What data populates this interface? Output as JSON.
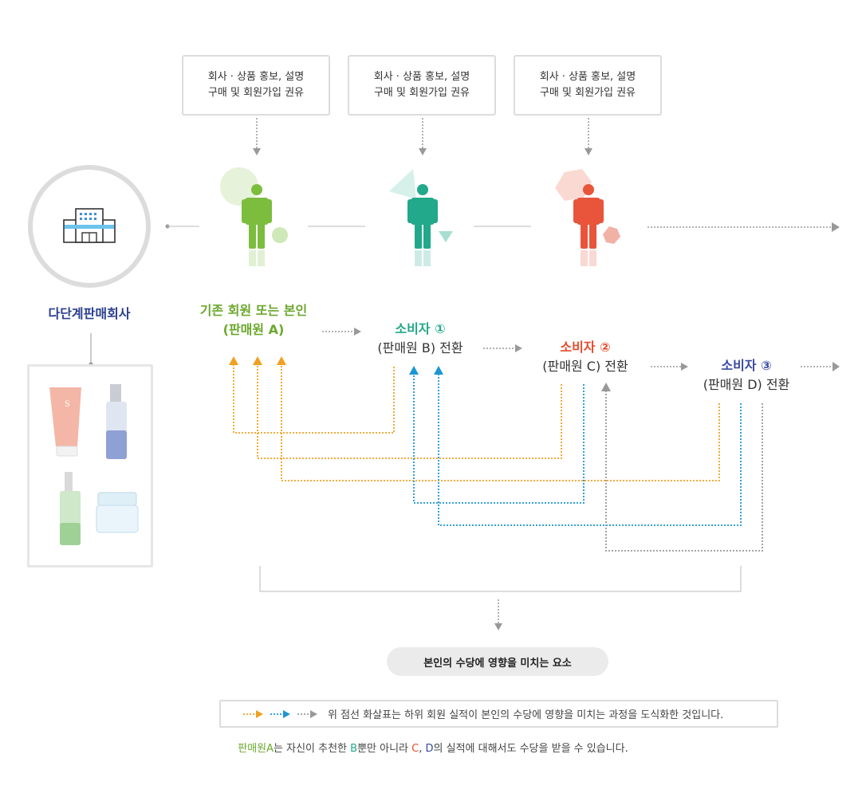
{
  "promo_box": {
    "line1": "회사 · 상품 홍보, 설명",
    "line2": "구매 및 회원가입 권유"
  },
  "company": {
    "label": "다단계판매회사"
  },
  "nodes": {
    "a": {
      "title": "기존 회원 또는 본인",
      "subtitle": "(판매원 A)",
      "color": "#6ba82e"
    },
    "b": {
      "title": "소비자 ①",
      "subtitle": "(판매원 B) 전환",
      "color": "#22a88a"
    },
    "c": {
      "title": "소비자 ②",
      "subtitle": "(판매원 C) 전환",
      "color": "#e74c2c"
    },
    "d": {
      "title": "소비자 ③",
      "subtitle": "(판매원 D) 전환",
      "color": "#3a4aa0"
    }
  },
  "colors": {
    "orange": "#f0a020",
    "blue": "#1a96d4",
    "gray": "#999999"
  },
  "result_pill": "본인의 수당에 영향을 미치는 요소",
  "legend": {
    "text": "위 점선 화살표는 하위 회원 실적이 본인의 수당에 영향을 미치는 과정을 도식화한 것입니다."
  },
  "note": {
    "p1": "판매원A",
    "p2": "는 자신이 추천한 ",
    "p3": "B",
    "p4": "뿐만 아니라 ",
    "p5": "C",
    "p6": ", ",
    "p7": "D",
    "p8": "의 실적에 대해서도 수당을 받을 수 있습니다."
  }
}
